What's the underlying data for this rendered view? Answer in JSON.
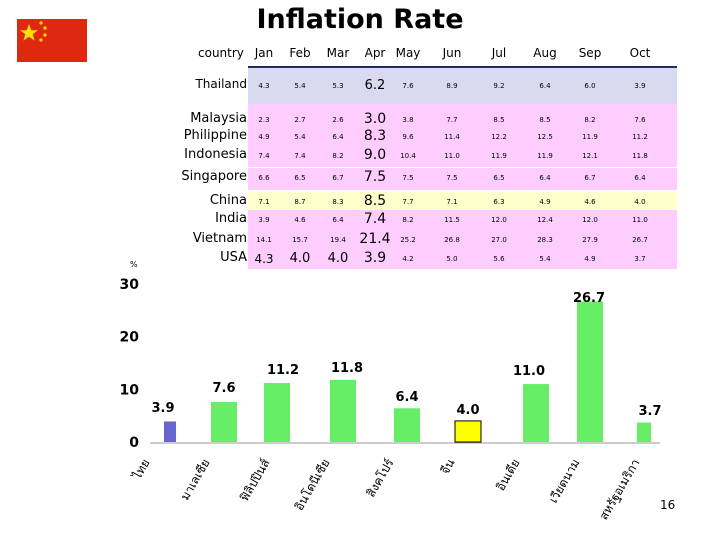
{
  "title": "Inflation Rate",
  "page_number": "16",
  "percent_mark": "%",
  "table": {
    "corner_label": "country",
    "months": [
      "Jan",
      "Feb",
      "Mar",
      "Apr",
      "May",
      "Jun",
      "Jul",
      "Aug",
      "Sep",
      "Oct"
    ],
    "rows": [
      {
        "country": "Thailand",
        "values": [
          "4.3",
          "5.4",
          "5.3",
          "6.2",
          "7.6",
          "8.9",
          "9.2",
          "6.4",
          "6.0",
          "3.9"
        ]
      },
      {
        "country": "Malaysia",
        "values": [
          "2.3",
          "2.7",
          "2.6",
          "3.0",
          "3.8",
          "7.7",
          "8.5",
          "8.5",
          "8.2",
          "7.6"
        ]
      },
      {
        "country": "Philippine",
        "values": [
          "4.9",
          "5.4",
          "6.4",
          "8.3",
          "9.6",
          "11.4",
          "12.2",
          "12.5",
          "11.9",
          "11.2"
        ]
      },
      {
        "country": "Indonesia",
        "values": [
          "7.4",
          "7.4",
          "8.2",
          "9.0",
          "10.4",
          "11.0",
          "11.9",
          "11.9",
          "12.1",
          "11.8"
        ]
      },
      {
        "country": "Singapore",
        "values": [
          "6.6",
          "6.5",
          "6.7",
          "7.5",
          "7.5",
          "7.5",
          "6.5",
          "6.4",
          "6.7",
          "6.4"
        ]
      },
      {
        "country": "China",
        "values": [
          "7.1",
          "8.7",
          "8.3",
          "8.5",
          "7.7",
          "7.1",
          "6.3",
          "4.9",
          "4.6",
          "4.0"
        ]
      },
      {
        "country": "India",
        "values": [
          "3.9",
          "4.6",
          "6.4",
          "7.4",
          "8.2",
          "11.5",
          "12.0",
          "12.4",
          "12.0",
          "11.0"
        ]
      },
      {
        "country": "Vietnam",
        "values": [
          "14.1",
          "15.7",
          "19.4",
          "21.4",
          "25.2",
          "26.8",
          "27.0",
          "28.3",
          "27.9",
          "26.7"
        ]
      },
      {
        "country": "USA",
        "values": [
          "4.3",
          "4.0",
          "4.0",
          "3.9",
          "4.2",
          "5.0",
          "5.6",
          "5.4",
          "4.9",
          "3.7"
        ]
      }
    ]
  },
  "chart_data": {
    "type": "bar",
    "title": "",
    "xlabel": "",
    "ylabel": "%",
    "ylim": [
      0,
      30
    ],
    "yticks": [
      "0",
      "10",
      "20",
      "30"
    ],
    "categories": [
      "ไทย",
      "มาเลเซีย",
      "ฟิลิปปินส์",
      "อินโดนีเซีย",
      "สิงคโปร์",
      "จีน",
      "อินเดีย",
      "เวียดนาม",
      "สหรัฐอเมริกา"
    ],
    "values": [
      3.9,
      7.6,
      11.2,
      11.8,
      6.4,
      4.0,
      11.0,
      26.7,
      3.7
    ],
    "data_labels": [
      "3.9",
      "7.6",
      "11.2",
      "11.8",
      "6.4",
      "4.0",
      "11.0",
      "26.7",
      "3.7"
    ],
    "colors": [
      "#6666cc",
      "#66ee66",
      "#66ee66",
      "#66ee66",
      "#66ee66",
      "#ffff00",
      "#66ee66",
      "#66ee66",
      "#66ee66"
    ],
    "grid": false
  },
  "colors": {
    "flag_red": "#de2910",
    "flag_star": "#ffde00",
    "row_thailand": "#d9d9ef",
    "row_pink": "#ffccff",
    "row_china": "#ffffcc",
    "header_rule": "#1f2a66"
  }
}
